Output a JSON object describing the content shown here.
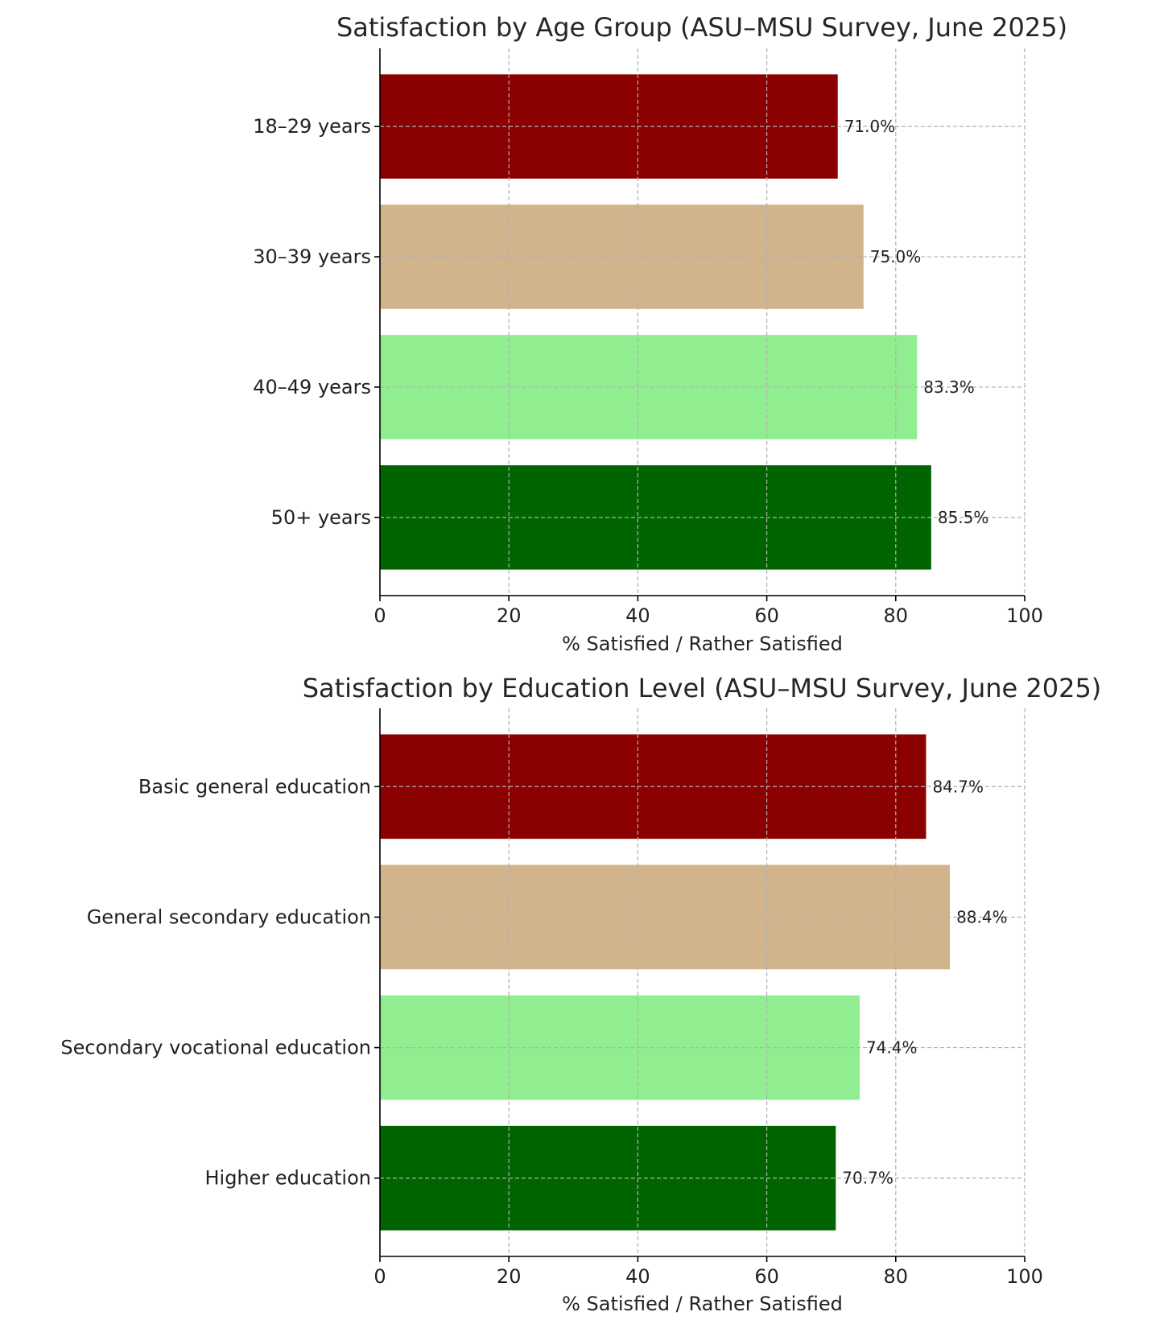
{
  "chart_data": [
    {
      "type": "bar",
      "orientation": "horizontal",
      "title": "Satisfaction by Age Group (ASU–MSU Survey, June 2025)",
      "xlabel": "% Satisfied / Rather Satisfied",
      "ylabel": "",
      "xlim": [
        0,
        100
      ],
      "xticks": [
        "0",
        "20",
        "40",
        "60",
        "80",
        "100"
      ],
      "grid": true,
      "categories": [
        "18–29 years",
        "30–39 years",
        "40–49 years",
        "50+ years"
      ],
      "values": [
        71.0,
        75.0,
        83.3,
        85.5
      ],
      "value_labels": [
        "71.0%",
        "75.0%",
        "83.3%",
        "85.5%"
      ],
      "colors": [
        "#8b0000",
        "#d2b48c",
        "#90ee90",
        "#006400"
      ]
    },
    {
      "type": "bar",
      "orientation": "horizontal",
      "title": "Satisfaction by Education Level (ASU–MSU Survey, June 2025)",
      "xlabel": "% Satisfied / Rather Satisfied",
      "ylabel": "",
      "xlim": [
        0,
        100
      ],
      "xticks": [
        "0",
        "20",
        "40",
        "60",
        "80",
        "100"
      ],
      "grid": true,
      "categories": [
        "Basic general education",
        "General secondary education",
        "Secondary vocational education",
        "Higher education"
      ],
      "values": [
        84.7,
        88.4,
        74.4,
        70.7
      ],
      "value_labels": [
        "84.7%",
        "88.4%",
        "74.4%",
        "70.7%"
      ],
      "colors": [
        "#8b0000",
        "#d2b48c",
        "#90ee90",
        "#006400"
      ]
    }
  ]
}
